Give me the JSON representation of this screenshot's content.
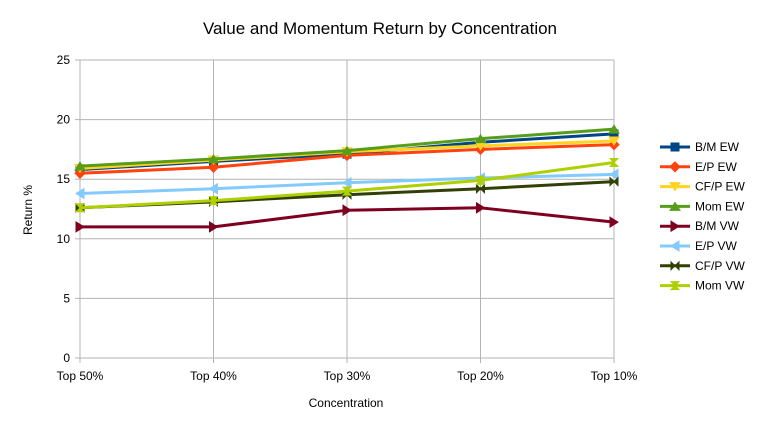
{
  "chart_data": {
    "type": "line",
    "title": "Value and Momentum Return by Concentration",
    "xlabel": "Concentration",
    "ylabel": "Return %",
    "categories": [
      "Top 50%",
      "Top 40%",
      "Top 30%",
      "Top 20%",
      "Top 10%"
    ],
    "ylim": [
      0,
      25
    ],
    "yticks": [
      0,
      5,
      10,
      15,
      20,
      25
    ],
    "grid": true,
    "legend_position": "right",
    "series": [
      {
        "name": "B/M EW",
        "values": [
          15.8,
          16.5,
          17.1,
          18.1,
          18.8
        ],
        "color": "#004586",
        "marker": "square"
      },
      {
        "name": "E/P EW",
        "values": [
          15.5,
          16.0,
          17.0,
          17.5,
          17.9
        ],
        "color": "#ff420e",
        "marker": "diamond"
      },
      {
        "name": "CF/P EW",
        "values": [
          15.9,
          16.6,
          17.3,
          17.8,
          18.2
        ],
        "color": "#ffd320",
        "marker": "triangle-down"
      },
      {
        "name": "Mom EW",
        "values": [
          16.1,
          16.7,
          17.4,
          18.4,
          19.2
        ],
        "color": "#579d1c",
        "marker": "triangle-up"
      },
      {
        "name": "B/M VW",
        "values": [
          11.0,
          11.0,
          12.4,
          12.6,
          11.4
        ],
        "color": "#7e0021",
        "marker": "triangle-right"
      },
      {
        "name": "E/P VW",
        "values": [
          13.8,
          14.2,
          14.7,
          15.1,
          15.4
        ],
        "color": "#83caff",
        "marker": "triangle-left"
      },
      {
        "name": "CF/P VW",
        "values": [
          12.6,
          13.1,
          13.7,
          14.2,
          14.8
        ],
        "color": "#314004",
        "marker": "bowtie-x"
      },
      {
        "name": "Mom VW",
        "values": [
          12.6,
          13.2,
          14.0,
          14.9,
          16.4
        ],
        "color": "#aecf00",
        "marker": "hourglass"
      }
    ]
  }
}
